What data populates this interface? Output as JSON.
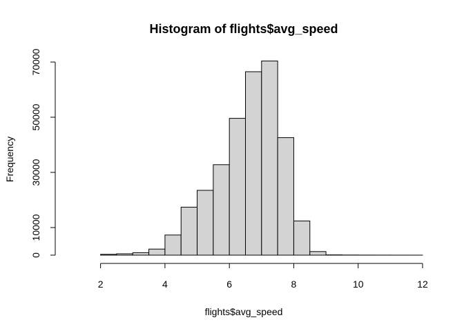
{
  "chart_data": {
    "type": "bar",
    "title": "Histogram of flights$avg_speed",
    "xlabel": "flights$avg_speed",
    "ylabel": "Frequency",
    "xlim": [
      1,
      12
    ],
    "ylim": [
      0,
      70000
    ],
    "x_ticks": [
      2,
      4,
      6,
      8,
      10,
      12
    ],
    "y_ticks": [
      0,
      10000,
      30000,
      50000,
      70000
    ],
    "bin_width": 0.5,
    "bins": [
      {
        "start": 2.0,
        "end": 2.5,
        "count": 300
      },
      {
        "start": 2.5,
        "end": 3.0,
        "count": 500
      },
      {
        "start": 3.0,
        "end": 3.5,
        "count": 900
      },
      {
        "start": 3.5,
        "end": 4.0,
        "count": 2200
      },
      {
        "start": 4.0,
        "end": 4.5,
        "count": 7300
      },
      {
        "start": 4.5,
        "end": 5.0,
        "count": 17400
      },
      {
        "start": 5.0,
        "end": 5.5,
        "count": 23500
      },
      {
        "start": 5.5,
        "end": 6.0,
        "count": 32800
      },
      {
        "start": 6.0,
        "end": 6.5,
        "count": 49600
      },
      {
        "start": 6.5,
        "end": 7.0,
        "count": 66500
      },
      {
        "start": 7.0,
        "end": 7.5,
        "count": 70400
      },
      {
        "start": 7.5,
        "end": 8.0,
        "count": 42600
      },
      {
        "start": 8.0,
        "end": 8.5,
        "count": 12400
      },
      {
        "start": 8.5,
        "end": 9.0,
        "count": 1300
      },
      {
        "start": 9.0,
        "end": 9.5,
        "count": 100
      },
      {
        "start": 9.5,
        "end": 10.0,
        "count": 50
      },
      {
        "start": 10.0,
        "end": 10.5,
        "count": 30
      },
      {
        "start": 10.5,
        "end": 11.0,
        "count": 20
      },
      {
        "start": 11.0,
        "end": 11.5,
        "count": 10
      },
      {
        "start": 11.5,
        "end": 12.0,
        "count": 5
      }
    ],
    "bar_fill": "#d3d3d3",
    "bar_stroke": "#000000",
    "grid": false,
    "legend": "none"
  }
}
